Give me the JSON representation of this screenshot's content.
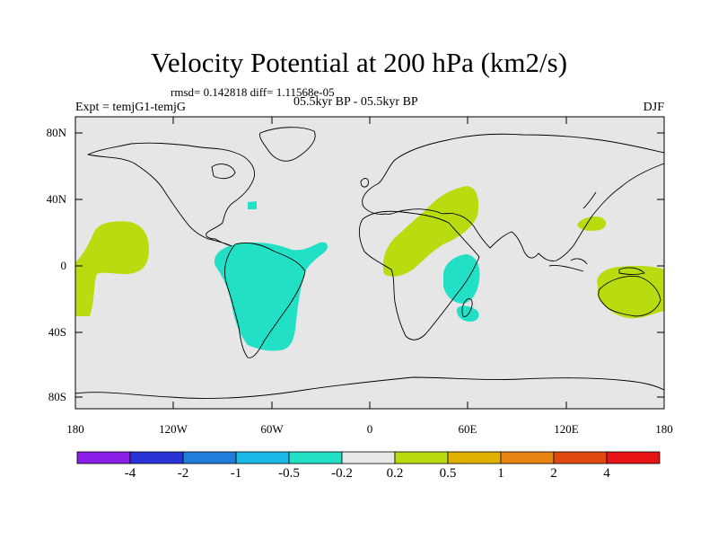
{
  "title": "Velocity Potential at 200 hPa (km2/s)",
  "stats": {
    "rmsd": "rmsd= 0.142818 diff= 1.11568e-05"
  },
  "subtitle": "05.5kyr BP - 05.5kyr BP",
  "experiment": "Expt = temjG1-temjG",
  "season": "DJF",
  "y_axis": {
    "labels": [
      "80N",
      "40N",
      "0",
      "40S",
      "80S"
    ]
  },
  "x_axis": {
    "labels": [
      "180",
      "120W",
      "60W",
      "0",
      "60E",
      "120E",
      "180"
    ]
  },
  "colorbar": {
    "colors": [
      "#8a1ee6",
      "#2a34d6",
      "#1f7ed9",
      "#1ab8e6",
      "#21e0c6",
      "#e8e8e8",
      "#b8dc10",
      "#e0b000",
      "#e88410",
      "#e04a10",
      "#e61414"
    ],
    "labels": [
      "-4",
      "-2",
      "-1",
      "-0.5",
      "-0.2",
      "0.2",
      "0.5",
      "1",
      "2",
      "4"
    ]
  },
  "colors": {
    "background": "#e6e6e6",
    "positive": "#b8dc10",
    "negative": "#21e0c6",
    "coast": "#000000"
  }
}
